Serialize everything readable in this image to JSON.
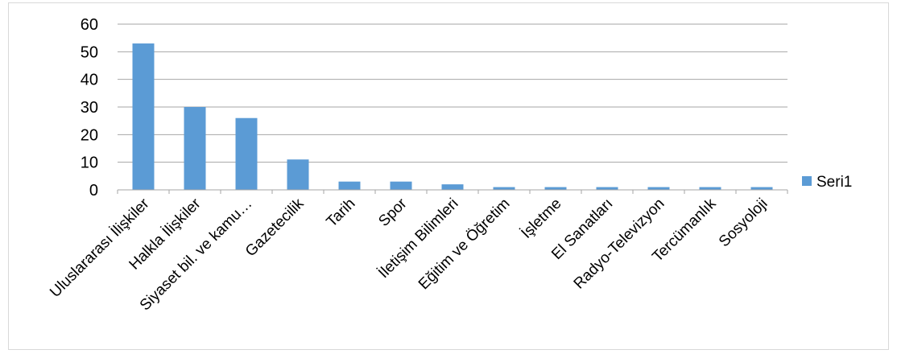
{
  "chart_data": {
    "type": "bar",
    "categories": [
      "Uluslararası İlişkiler",
      "Halkla İlişkiler",
      "Siyaset bil. ve kamu…",
      "Gazetecilik",
      "Tarih",
      "Spor",
      "İletişim Bilimleri",
      "Eğitim ve Öğretim",
      "İşletme",
      "El Sanatları",
      "Radyo-Televizyon",
      "Tercümanlık",
      "Sosyoloji"
    ],
    "series": [
      {
        "name": "Seri1",
        "values": [
          53,
          30,
          26,
          11,
          3,
          3,
          2,
          1,
          1,
          1,
          1,
          1,
          1
        ]
      }
    ],
    "y_ticks": [
      "0",
      "10",
      "20",
      "30",
      "40",
      "50",
      "60"
    ],
    "ylim": [
      0,
      60
    ],
    "grid": true,
    "legend_position": "right",
    "colors": {
      "bar": "#5b9bd5",
      "grid": "#a6a6a6",
      "axis": "#a6a6a6"
    }
  }
}
